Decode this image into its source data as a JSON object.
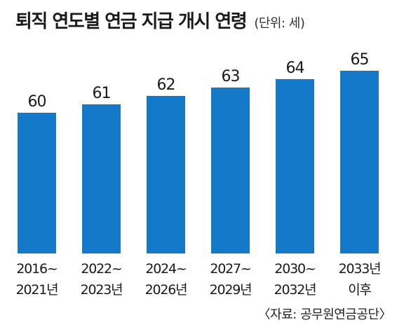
{
  "chart_data": {
    "type": "bar",
    "title": "퇴직 연도별 연금 지급 개시 연령",
    "unit_note": "(단위: 세)",
    "categories": [
      [
        "2016~",
        "2021년"
      ],
      [
        "2022~",
        "2023년"
      ],
      [
        "2024~",
        "2026년"
      ],
      [
        "2027~",
        "2029년"
      ],
      [
        "2030~",
        "2032년"
      ],
      [
        "2033년",
        "이후"
      ]
    ],
    "values": [
      60,
      61,
      62,
      63,
      64,
      65
    ],
    "bar_color": "#1479c9",
    "source": "〈자료: 공무원연금공단〉"
  }
}
